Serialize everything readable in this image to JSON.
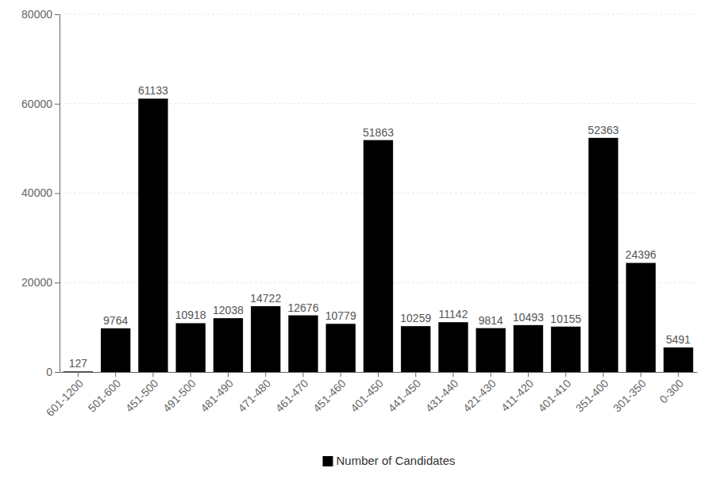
{
  "chart_data": {
    "type": "bar",
    "categories": [
      "601-1200",
      "501-600",
      "451-500",
      "491-500",
      "481-490",
      "471-480",
      "461-470",
      "451-460",
      "401-450",
      "441-450",
      "431-440",
      "421-430",
      "411-420",
      "401-410",
      "351-400",
      "301-350",
      "0-300"
    ],
    "series": [
      {
        "name": "Number of Candidates",
        "color": "#000000",
        "values": [
          127,
          9764,
          61133,
          10918,
          12038,
          14722,
          12676,
          10779,
          51863,
          10259,
          11142,
          9814,
          10493,
          10155,
          52363,
          24396,
          5491
        ]
      }
    ],
    "ylim": [
      0,
      80000
    ],
    "yticks": [
      0,
      20000,
      40000,
      60000,
      80000
    ],
    "grid": true,
    "data_labels": true,
    "legend": "bottom"
  }
}
